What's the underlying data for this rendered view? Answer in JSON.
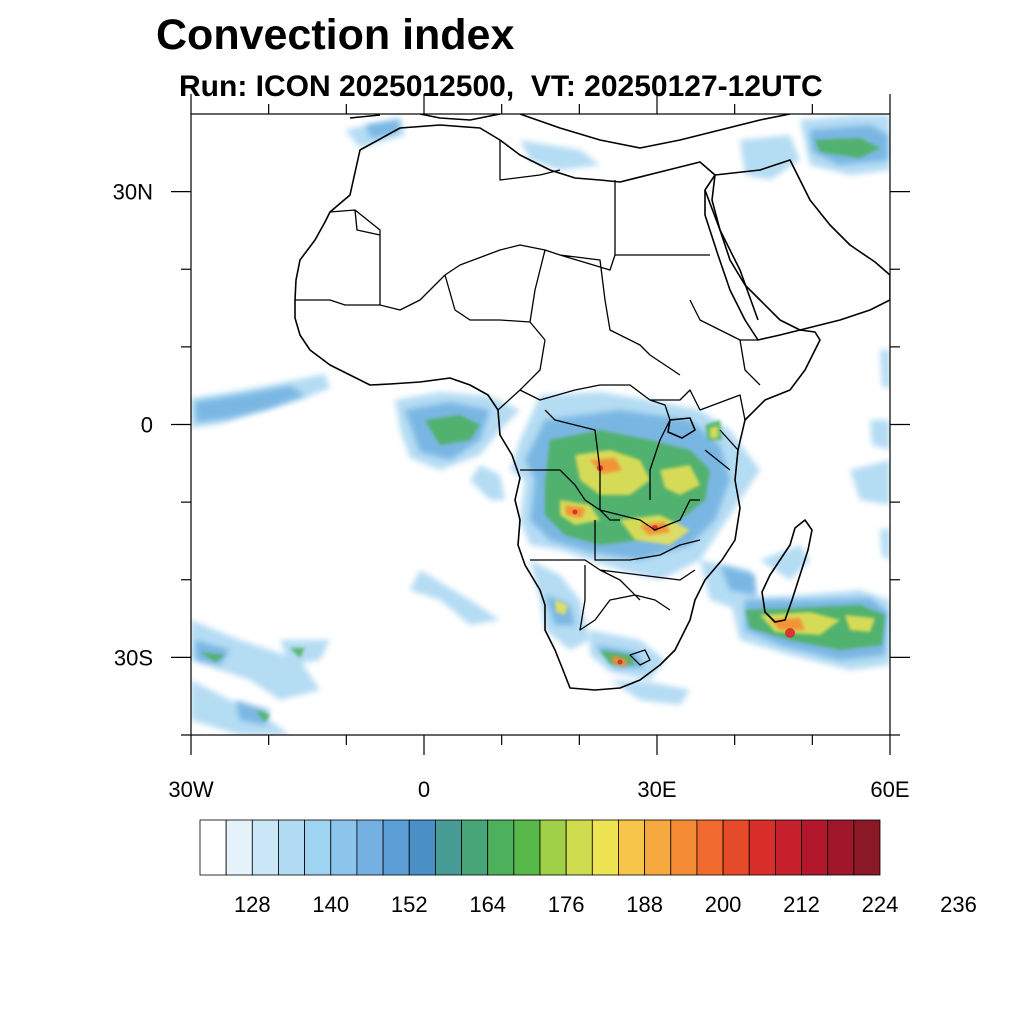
{
  "title": "Convection index",
  "subtitle": "Run: ICON 2025012500,  VT: 20250127-12UTC",
  "map": {
    "lon_range": [
      -30,
      60
    ],
    "lat_range": [
      -40,
      40
    ],
    "lon_ticks": [
      {
        "lon": -30,
        "label": "30W"
      },
      {
        "lon": 0,
        "label": "0"
      },
      {
        "lon": 30,
        "label": "30E"
      },
      {
        "lon": 60,
        "label": "60E"
      }
    ],
    "lat_ticks": [
      {
        "lat": 30,
        "label": "30N"
      },
      {
        "lat": 0,
        "label": "0"
      },
      {
        "lat": -30,
        "label": "30S"
      }
    ],
    "minor_lon_ticks": [
      -20,
      -10,
      10,
      20,
      40,
      50
    ],
    "minor_lat_ticks": [
      20,
      10,
      -10,
      -20,
      -40
    ]
  },
  "colorbar": {
    "colors": [
      "#ffffff",
      "#e6f3fb",
      "#cbe7f7",
      "#b1dbf3",
      "#9fd3f2",
      "#8cc5ec",
      "#74b1e2",
      "#5c9ed6",
      "#4a90c6",
      "#479d96",
      "#47a678",
      "#4cb15a",
      "#59b84a",
      "#a0cf48",
      "#cfdc4d",
      "#eee352",
      "#f7c54a",
      "#f6a93f",
      "#f58c35",
      "#f16a2e",
      "#e54a29",
      "#d92f2a",
      "#c7202d",
      "#b3172b",
      "#a0162a",
      "#8b1827"
    ],
    "labels": [
      "128",
      "140",
      "152",
      "164",
      "176",
      "188",
      "200",
      "212",
      "224",
      "236"
    ]
  }
}
